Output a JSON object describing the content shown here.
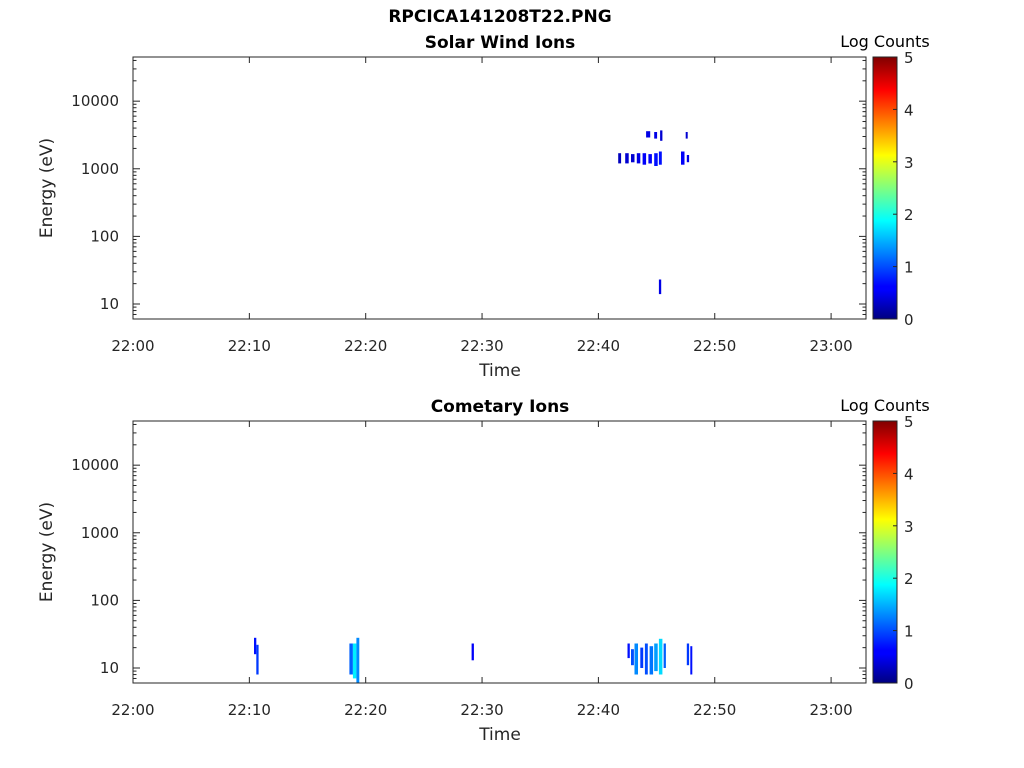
{
  "page_title": "RPCICA141208T22.PNG",
  "chart_data": [
    {
      "type": "heatmap",
      "title": "Solar Wind Ions",
      "xlabel": "Time",
      "ylabel": "Energy (eV)",
      "x_ticks": [
        "22:00",
        "22:10",
        "22:20",
        "22:30",
        "22:40",
        "22:50",
        "23:00"
      ],
      "x_range": [
        "22:00",
        "23:03"
      ],
      "y_scale": "log",
      "y_ticks": [
        10,
        100,
        1000,
        10000
      ],
      "y_range": [
        6,
        45000
      ],
      "colorbar": {
        "label": "Log Counts",
        "range": [
          0,
          5
        ],
        "ticks": [
          0,
          1,
          2,
          3,
          4,
          5
        ],
        "colormap": "jet"
      },
      "cells": [
        {
          "t": "22:41.7",
          "dt": 0.25,
          "e_lo": 1200,
          "e_hi": 1700,
          "v": 0.3
        },
        {
          "t": "22:42.3",
          "dt": 0.3,
          "e_lo": 1200,
          "e_hi": 1700,
          "v": 0.4
        },
        {
          "t": "22:42.8",
          "dt": 0.3,
          "e_lo": 1250,
          "e_hi": 1650,
          "v": 0.4
        },
        {
          "t": "22:43.3",
          "dt": 0.3,
          "e_lo": 1200,
          "e_hi": 1700,
          "v": 0.5
        },
        {
          "t": "22:43.8",
          "dt": 0.3,
          "e_lo": 1150,
          "e_hi": 1700,
          "v": 0.6
        },
        {
          "t": "22:44.3",
          "dt": 0.3,
          "e_lo": 1200,
          "e_hi": 1650,
          "v": 0.6
        },
        {
          "t": "22:44.8",
          "dt": 0.3,
          "e_lo": 1100,
          "e_hi": 1700,
          "v": 0.7
        },
        {
          "t": "22:45.2",
          "dt": 0.25,
          "e_lo": 1150,
          "e_hi": 1800,
          "v": 0.7
        },
        {
          "t": "22:44.1",
          "dt": 0.35,
          "e_lo": 2900,
          "e_hi": 3600,
          "v": 0.5
        },
        {
          "t": "22:44.8",
          "dt": 0.25,
          "e_lo": 2800,
          "e_hi": 3500,
          "v": 0.5
        },
        {
          "t": "22:45.3",
          "dt": 0.2,
          "e_lo": 2600,
          "e_hi": 3700,
          "v": 0.4
        },
        {
          "t": "22:47.1",
          "dt": 0.3,
          "e_lo": 1150,
          "e_hi": 1800,
          "v": 0.6
        },
        {
          "t": "22:47.6",
          "dt": 0.2,
          "e_lo": 1250,
          "e_hi": 1600,
          "v": 0.5
        },
        {
          "t": "22:47.5",
          "dt": 0.15,
          "e_lo": 2800,
          "e_hi": 3500,
          "v": 0.4
        },
        {
          "t": "22:45.2",
          "dt": 0.2,
          "e_lo": 14,
          "e_hi": 23,
          "v": 0.5
        }
      ]
    },
    {
      "type": "heatmap",
      "title": "Cometary Ions",
      "xlabel": "Time",
      "ylabel": "Energy (eV)",
      "x_ticks": [
        "22:00",
        "22:10",
        "22:20",
        "22:30",
        "22:40",
        "22:50",
        "23:00"
      ],
      "x_range": [
        "22:00",
        "23:03"
      ],
      "y_scale": "log",
      "y_ticks": [
        10,
        100,
        1000,
        10000
      ],
      "y_range": [
        6,
        45000
      ],
      "colorbar": {
        "label": "Log Counts",
        "range": [
          0,
          5
        ],
        "ticks": [
          0,
          1,
          2,
          3,
          4,
          5
        ],
        "colormap": "jet"
      },
      "cells": [
        {
          "t": "22:10.4",
          "dt": 0.2,
          "e_lo": 16,
          "e_hi": 28,
          "v": 0.7
        },
        {
          "t": "22:10.6",
          "dt": 0.2,
          "e_lo": 8,
          "e_hi": 22,
          "v": 0.9
        },
        {
          "t": "22:18.6",
          "dt": 0.3,
          "e_lo": 8,
          "e_hi": 23,
          "v": 1.1
        },
        {
          "t": "22:18.9",
          "dt": 0.3,
          "e_lo": 7,
          "e_hi": 23,
          "v": 1.8
        },
        {
          "t": "22:19.2",
          "dt": 0.25,
          "e_lo": 6,
          "e_hi": 28,
          "v": 1.3
        },
        {
          "t": "22:29.1",
          "dt": 0.2,
          "e_lo": 13,
          "e_hi": 23,
          "v": 0.6
        },
        {
          "t": "22:42.5",
          "dt": 0.2,
          "e_lo": 14,
          "e_hi": 23,
          "v": 0.7
        },
        {
          "t": "22:42.8",
          "dt": 0.25,
          "e_lo": 11,
          "e_hi": 19,
          "v": 1.0
        },
        {
          "t": "22:43.1",
          "dt": 0.3,
          "e_lo": 8,
          "e_hi": 23,
          "v": 1.3
        },
        {
          "t": "22:43.6",
          "dt": 0.25,
          "e_lo": 10,
          "e_hi": 20,
          "v": 0.9
        },
        {
          "t": "22:44.0",
          "dt": 0.25,
          "e_lo": 8,
          "e_hi": 23,
          "v": 1.0
        },
        {
          "t": "22:44.4",
          "dt": 0.3,
          "e_lo": 8,
          "e_hi": 21,
          "v": 1.2
        },
        {
          "t": "22:44.8",
          "dt": 0.3,
          "e_lo": 9,
          "e_hi": 23,
          "v": 1.4
        },
        {
          "t": "22:45.2",
          "dt": 0.3,
          "e_lo": 8,
          "e_hi": 27,
          "v": 1.7
        },
        {
          "t": "22:45.6",
          "dt": 0.2,
          "e_lo": 10,
          "e_hi": 23,
          "v": 1.1
        },
        {
          "t": "22:47.6",
          "dt": 0.2,
          "e_lo": 11,
          "e_hi": 23,
          "v": 0.9
        },
        {
          "t": "22:47.9",
          "dt": 0.15,
          "e_lo": 8,
          "e_hi": 21,
          "v": 0.7
        }
      ]
    }
  ]
}
